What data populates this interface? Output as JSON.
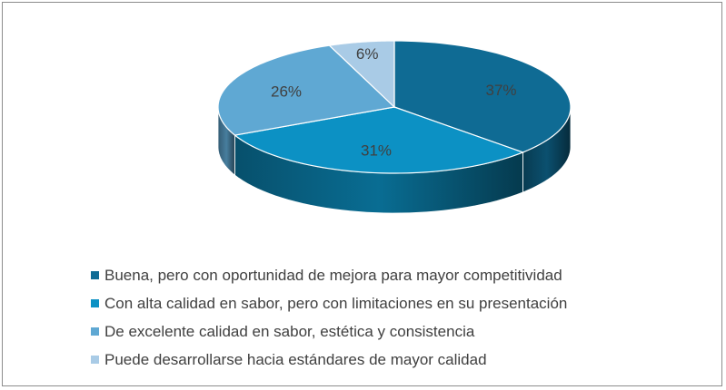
{
  "chart_data": {
    "type": "pie",
    "title": "",
    "three_d": true,
    "start_angle_deg": 90,
    "direction": "clockwise",
    "slices": [
      {
        "name": "Buena, pero con oportunidad de mejora para mayor competitividad",
        "value": 37,
        "label": "37%",
        "color": "#0f6b94"
      },
      {
        "name": "Con alta calidad en sabor, pero con limitaciones en su presentación",
        "value": 31,
        "label": "31%",
        "color": "#0c91c4"
      },
      {
        "name": "De excelente calidad en sabor, estética y consistencia",
        "value": 26,
        "label": "26%",
        "color": "#5fa8d3"
      },
      {
        "name": "Puede desarrollarse hacia estándares de mayor calidad",
        "value": 6,
        "label": "6%",
        "color": "#a9cbe6"
      }
    ],
    "legend_position": "bottom"
  }
}
